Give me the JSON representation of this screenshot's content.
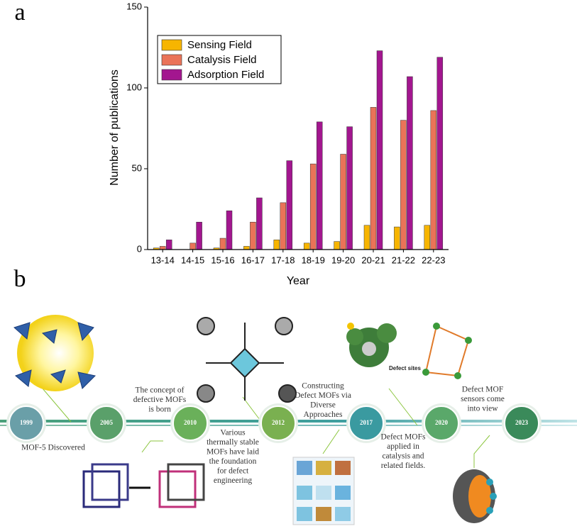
{
  "chart_data": {
    "type": "bar",
    "panel_label": "a",
    "x_label": "Year",
    "y_label": "Number of publications",
    "categories": [
      "13-14",
      "14-15",
      "15-16",
      "16-17",
      "17-18",
      "18-19",
      "19-20",
      "20-21",
      "21-22",
      "22-23"
    ],
    "series": [
      {
        "name": "Sensing Field",
        "color": "#f7b500",
        "values": [
          1,
          0,
          1,
          2,
          6,
          4,
          5,
          15,
          14,
          15
        ]
      },
      {
        "name": "Catalysis Field",
        "color": "#ea7358",
        "values": [
          2,
          4,
          7,
          17,
          29,
          53,
          59,
          88,
          80,
          86
        ]
      },
      {
        "name": "Adsorption Field",
        "color": "#a3168f",
        "values": [
          6,
          17,
          24,
          32,
          55,
          79,
          76,
          123,
          107,
          119
        ]
      }
    ],
    "ylim": [
      0,
      150
    ],
    "yticks": [
      0,
      50,
      100,
      150
    ],
    "grid": false,
    "legend": "top-left"
  },
  "timeline": {
    "panel_label": "b",
    "years": [
      "1999",
      "2005",
      "2010",
      "2012",
      "2017",
      "2020",
      "2023"
    ],
    "captions": [
      [
        "MOF-5 Discovered"
      ],
      [
        "The concept of",
        "defective MOFs",
        "is born"
      ],
      [
        "Various",
        "thermally stable",
        "MOFs have laid",
        "the foundation",
        "for defect",
        "engineering"
      ],
      [
        "Constructing",
        "Defect MOFs via",
        "Diverse",
        "Approaches"
      ],
      [
        "Defect MOFs",
        "applied in",
        "catalysis and",
        "related fields."
      ],
      [
        "Defect MOF",
        "sensors come",
        "into view"
      ]
    ],
    "image_labels": [
      "Defect sites"
    ]
  }
}
